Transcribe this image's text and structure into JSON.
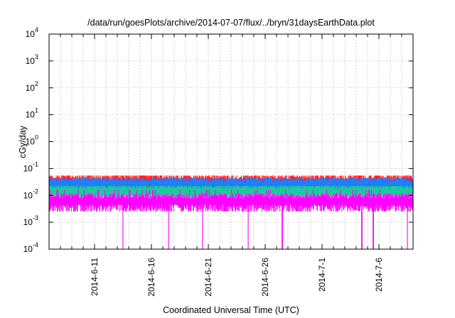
{
  "chart_data": {
    "type": "line",
    "title": "/data/run/goesPlots/archive/2014-07-07/flux/../bryn/31daysEarthData.plot",
    "xlabel": "Coordinated Universal Time (UTC)",
    "ylabel": "cGy/day",
    "x_range": [
      "2014-06-07",
      "2014-07-09"
    ],
    "y_scale": "log",
    "ylim": [
      0.0001,
      10000
    ],
    "grid": true,
    "y_ticks": [
      {
        "base": "10",
        "exp": "-4"
      },
      {
        "base": "10",
        "exp": "-3"
      },
      {
        "base": "10",
        "exp": "-2"
      },
      {
        "base": "10",
        "exp": "-1"
      },
      {
        "base": "10",
        "exp": "0"
      },
      {
        "base": "10",
        "exp": "1"
      },
      {
        "base": "10",
        "exp": "2"
      },
      {
        "base": "10",
        "exp": "3"
      },
      {
        "base": "10",
        "exp": "4"
      }
    ],
    "x_ticks": [
      "2014-6-11",
      "2014-6-16",
      "2014-6-21",
      "2014-6-26",
      "2014-7-1",
      "2014-7-6"
    ],
    "series": [
      {
        "color": "#ff2020",
        "typical": 0.032,
        "peak": 0.055,
        "floor": 0.012
      },
      {
        "color": "#1e7fff",
        "typical": 0.025,
        "peak": 0.045,
        "floor": 0.009
      },
      {
        "color": "#20c8a0",
        "typical": 0.014,
        "peak": 0.022,
        "floor": 0.006
      },
      {
        "color": "#ff00ff",
        "typical": 0.006,
        "peak": 0.016,
        "floor": 0.0025
      }
    ],
    "dropouts": [
      "2014-06-13",
      "2014-06-17",
      "2014-06-20",
      "2014-06-24",
      "2014-06-27",
      "2014-07-04",
      "2014-07-05",
      "2014-07-08"
    ]
  }
}
